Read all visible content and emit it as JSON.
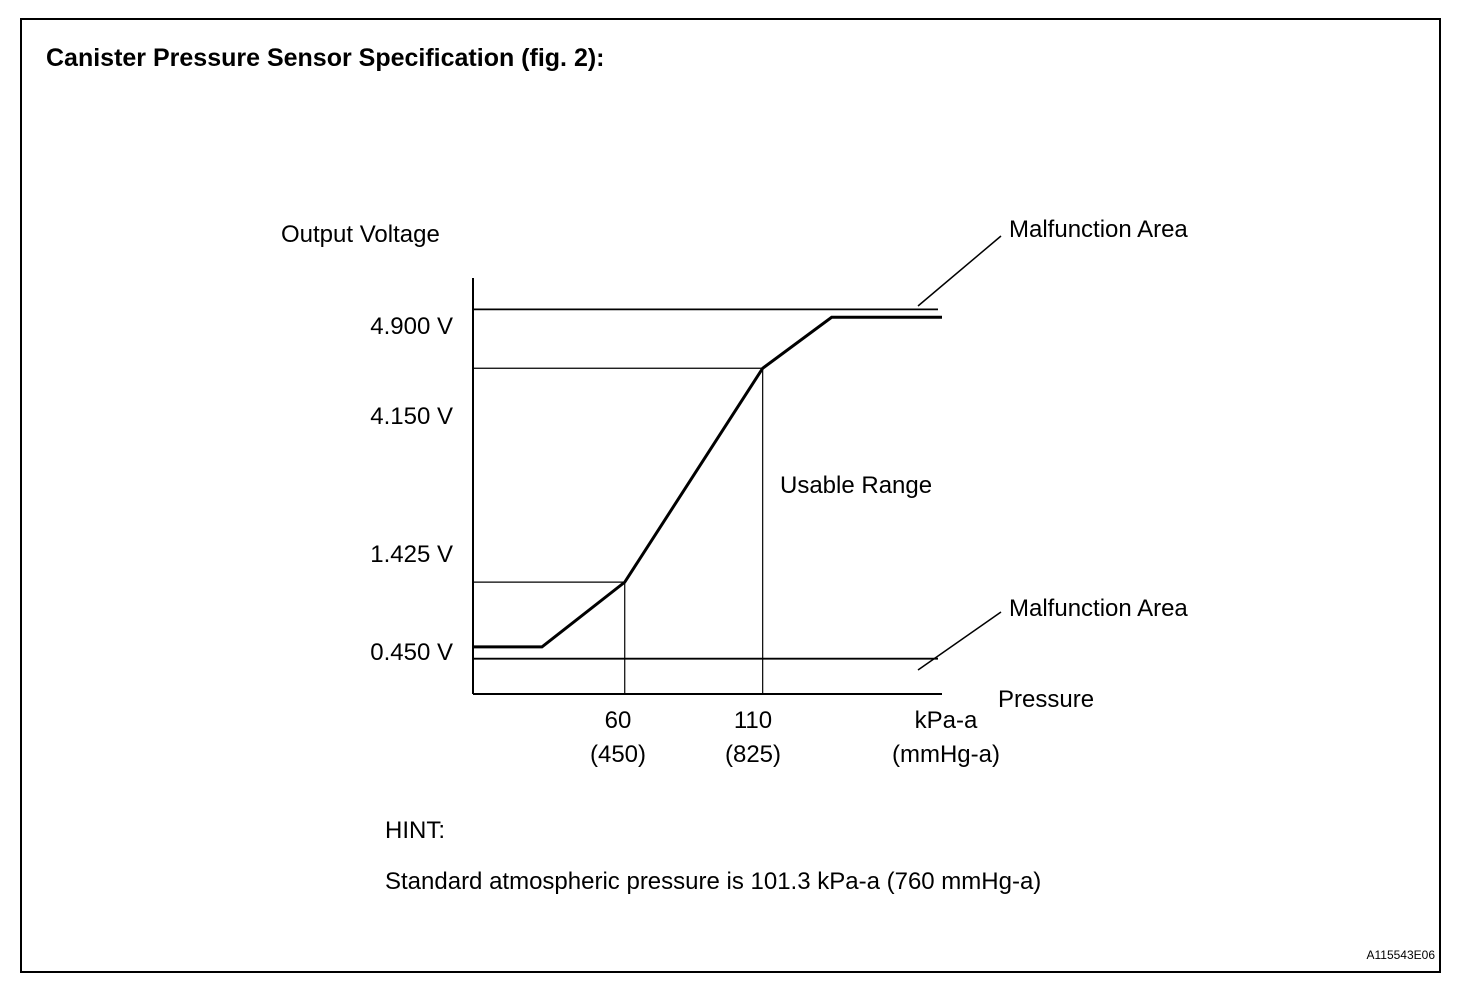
{
  "title": "Canister Pressure Sensor Specification (fig. 2):",
  "hint": {
    "label": "HINT:",
    "text": "Standard atmospheric pressure is 101.3 kPa-a (760 mmHg-a)"
  },
  "figure_id": "A115543E06",
  "chart_data": {
    "type": "line",
    "ylabel": "Output Voltage",
    "xlabel": "Pressure",
    "x_unit": "kPa-a",
    "x_unit_alt": "(mmHg-a)",
    "y_ticks": [
      {
        "label": "4.900 V",
        "value": 4.9
      },
      {
        "label": "4.150 V",
        "value": 4.15
      },
      {
        "label": "1.425 V",
        "value": 1.425
      },
      {
        "label": "0.450 V",
        "value": 0.45
      }
    ],
    "x_ticks": [
      {
        "value": 60,
        "label": "60",
        "alt": "(450)"
      },
      {
        "value": 110,
        "label": "110",
        "alt": "(825)"
      }
    ],
    "annotations": {
      "upper_area": "Malfunction Area",
      "lower_area": "Malfunction Area",
      "usable_range": "Usable Range"
    },
    "series": [
      {
        "x": [
          5,
          30,
          60,
          110,
          135,
          175
        ],
        "y": [
          0.6,
          0.6,
          1.425,
          4.15,
          4.8,
          4.8
        ]
      }
    ],
    "xlim": [
      5,
      175
    ],
    "ylim": [
      0,
      5.3
    ],
    "grid": false
  }
}
